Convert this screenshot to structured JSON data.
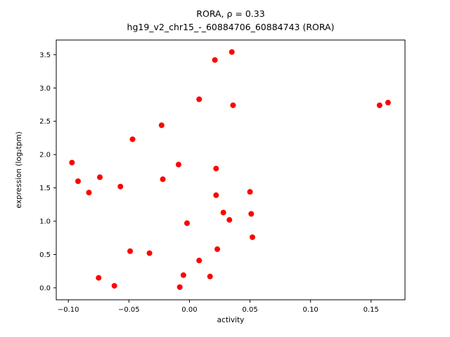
{
  "title": {
    "line1": "RORA, ρ = 0.33",
    "line2": "hg19_v2_chr15_-_60884706_60884743 (RORA)"
  },
  "chart_data": {
    "type": "scatter",
    "title": "RORA, ρ = 0.33",
    "subtitle": "hg19_v2_chr15_-_60884706_60884743 (RORA)",
    "xlabel": "activity",
    "ylabel": "expression (log₂tpm)",
    "xlim": [
      -0.11,
      0.178
    ],
    "ylim": [
      -0.18,
      3.72
    ],
    "grid": false,
    "legend": "none",
    "marker_color": "#ff0000",
    "marker_radius": 4,
    "xticks": {
      "values": [
        -0.1,
        -0.05,
        0.0,
        0.05,
        0.1,
        0.15
      ],
      "labels": [
        "−0.10",
        "−0.05",
        "0.00",
        "0.05",
        "0.10",
        "0.15"
      ]
    },
    "yticks": {
      "values": [
        0.0,
        0.5,
        1.0,
        1.5,
        2.0,
        2.5,
        3.0,
        3.5
      ],
      "labels": [
        "0.0",
        "0.5",
        "1.0",
        "1.5",
        "2.0",
        "2.5",
        "3.0",
        "3.5"
      ]
    },
    "points": [
      [
        -0.097,
        1.88
      ],
      [
        -0.092,
        1.6
      ],
      [
        -0.083,
        1.43
      ],
      [
        -0.074,
        1.66
      ],
      [
        -0.075,
        0.15
      ],
      [
        -0.062,
        0.03
      ],
      [
        -0.057,
        1.52
      ],
      [
        -0.049,
        0.55
      ],
      [
        -0.047,
        2.23
      ],
      [
        -0.033,
        0.52
      ],
      [
        -0.023,
        2.44
      ],
      [
        -0.022,
        1.63
      ],
      [
        -0.009,
        1.85
      ],
      [
        -0.008,
        0.01
      ],
      [
        -0.005,
        0.19
      ],
      [
        -0.002,
        0.97
      ],
      [
        0.008,
        2.83
      ],
      [
        0.008,
        0.41
      ],
      [
        0.017,
        0.17
      ],
      [
        0.021,
        3.42
      ],
      [
        0.022,
        1.79
      ],
      [
        0.022,
        1.39
      ],
      [
        0.023,
        0.58
      ],
      [
        0.028,
        1.13
      ],
      [
        0.035,
        3.54
      ],
      [
        0.036,
        2.74
      ],
      [
        0.033,
        1.02
      ],
      [
        0.05,
        1.44
      ],
      [
        0.051,
        1.11
      ],
      [
        0.052,
        0.76
      ],
      [
        0.157,
        2.74
      ],
      [
        0.164,
        2.78
      ]
    ]
  }
}
